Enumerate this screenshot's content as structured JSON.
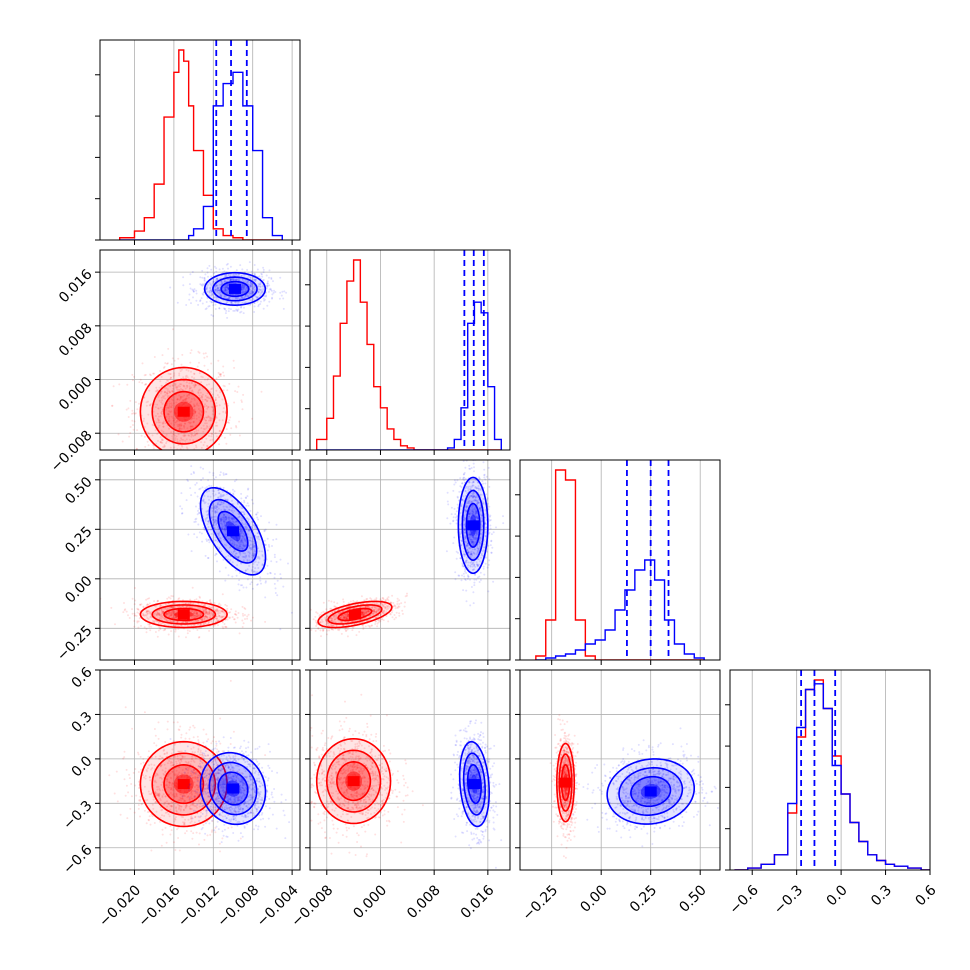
{
  "chart_data": {
    "type": "corner",
    "grid": true,
    "colors": {
      "red": "#ff0000",
      "blue": "#0000ff",
      "grid": "#b0b0b0",
      "frame": "#000000"
    },
    "parameters": [
      {
        "range": [
          -0.0235,
          -0.0032
        ],
        "ticks": [
          -0.02,
          -0.016,
          -0.012,
          -0.008,
          -0.004
        ],
        "tick_labels": [
          "−0.020",
          "−0.016",
          "−0.012",
          "−0.008",
          "−0.004"
        ]
      },
      {
        "range": [
          -0.0105,
          0.0193
        ],
        "ticks": [
          -0.008,
          0.0,
          0.008,
          0.016
        ],
        "tick_labels": [
          "−0.008",
          "0.000",
          "0.008",
          "0.016"
        ]
      },
      {
        "range": [
          -0.41,
          0.6
        ],
        "ticks": [
          -0.25,
          0.0,
          0.25,
          0.5
        ],
        "tick_labels": [
          "−0.25",
          "0.00",
          "0.25",
          "0.50"
        ]
      },
      {
        "range": [
          -0.75,
          0.6
        ],
        "ticks": [
          -0.6,
          -0.3,
          0.0,
          0.3,
          0.6
        ],
        "tick_labels": [
          "−0.6",
          "−0.3",
          "0.0",
          "0.3",
          "0.6"
        ]
      }
    ],
    "marginals": [
      {
        "edges": [
          -0.0215,
          -0.02,
          -0.019,
          -0.018,
          -0.017,
          -0.016,
          -0.0155,
          -0.015,
          -0.0145,
          -0.014,
          -0.013,
          -0.012,
          -0.011,
          -0.01,
          -0.009,
          -0.008,
          -0.007,
          -0.006,
          -0.005
        ],
        "red": [
          1,
          4,
          10,
          25,
          55,
          75,
          85,
          80,
          60,
          40,
          20,
          5,
          2,
          1,
          0,
          0,
          0,
          0
        ],
        "blue": [
          0,
          0,
          0,
          0,
          0,
          0,
          0,
          0,
          2,
          5,
          15,
          60,
          70,
          75,
          60,
          40,
          10,
          2
        ],
        "blue_quantiles": [
          -0.0117,
          -0.0102,
          -0.0086
        ]
      },
      {
        "edges": [
          -0.0095,
          -0.008,
          -0.007,
          -0.006,
          -0.005,
          -0.004,
          -0.003,
          -0.002,
          -0.001,
          0.0,
          0.001,
          0.002,
          0.003,
          0.004,
          0.005,
          0.006,
          0.007,
          0.008,
          0.009,
          0.01,
          0.011,
          0.012,
          0.013,
          0.014,
          0.015,
          0.016,
          0.017,
          0.018
        ],
        "red": [
          5,
          15,
          35,
          60,
          80,
          90,
          70,
          50,
          30,
          20,
          10,
          5,
          2,
          1,
          0,
          0,
          0,
          0,
          0,
          0,
          0,
          0,
          0,
          0,
          0,
          0,
          0
        ],
        "blue": [
          0,
          0,
          0,
          0,
          0,
          0,
          0,
          0,
          0,
          0,
          0,
          0,
          0,
          0,
          0,
          0,
          0,
          0,
          0,
          1,
          5,
          20,
          60,
          70,
          65,
          30,
          5
        ],
        "blue_quantiles": [
          0.0125,
          0.0139,
          0.0154
        ]
      },
      {
        "edges": [
          -0.33,
          -0.28,
          -0.23,
          -0.18,
          -0.13,
          -0.08,
          -0.03,
          0.02,
          0.07,
          0.12,
          0.17,
          0.22,
          0.27,
          0.32,
          0.37,
          0.42,
          0.47,
          0.52
        ],
        "red": [
          2,
          20,
          95,
          90,
          20,
          2,
          0,
          0,
          0,
          0,
          0,
          0,
          0,
          0,
          0,
          0,
          0
        ],
        "blue": [
          0,
          1,
          2,
          3,
          5,
          8,
          10,
          15,
          25,
          35,
          45,
          50,
          40,
          20,
          8,
          3,
          1
        ],
        "blue_quantiles": [
          0.13,
          0.25,
          0.34
        ]
      },
      {
        "edges": [
          -0.72,
          -0.63,
          -0.54,
          -0.45,
          -0.36,
          -0.3,
          -0.24,
          -0.18,
          -0.12,
          -0.06,
          0.0,
          0.06,
          0.12,
          0.18,
          0.24,
          0.3,
          0.36,
          0.45,
          0.54,
          0.6
        ],
        "red": [
          0,
          1,
          3,
          8,
          30,
          70,
          95,
          100,
          85,
          60,
          40,
          25,
          15,
          8,
          5,
          3,
          2,
          1,
          0
        ],
        "blue": [
          0,
          1,
          3,
          8,
          35,
          75,
          95,
          98,
          85,
          55,
          40,
          25,
          15,
          8,
          5,
          3,
          2,
          1,
          0
        ],
        "blue_quantiles": [
          -0.27,
          -0.18,
          -0.04
        ]
      }
    ],
    "pairs": [
      {
        "row": 1,
        "col": 0,
        "red": {
          "center": [
            -0.015,
            -0.0048
          ],
          "spread": [
            0.002,
            0.003
          ],
          "rho": 0.0
        },
        "blue": {
          "center": [
            -0.0098,
            0.0135
          ],
          "spread": [
            0.0014,
            0.0011
          ],
          "rho": 0.0
        }
      },
      {
        "row": 2,
        "col": 0,
        "red": {
          "center": [
            -0.015,
            -0.18
          ],
          "spread": [
            0.002,
            0.03
          ],
          "rho": 0.0
        },
        "blue": {
          "center": [
            -0.01,
            0.24
          ],
          "spread": [
            0.0015,
            0.1
          ],
          "rho": -0.6
        }
      },
      {
        "row": 2,
        "col": 1,
        "red": {
          "center": [
            -0.0038,
            -0.18
          ],
          "spread": [
            0.0025,
            0.03
          ],
          "rho": 0.55
        },
        "blue": {
          "center": [
            0.0138,
            0.27
          ],
          "spread": [
            0.001,
            0.11
          ],
          "rho": 0.0
        }
      },
      {
        "row": 3,
        "col": 0,
        "red": {
          "center": [
            -0.015,
            -0.17
          ],
          "spread": [
            0.002,
            0.13
          ],
          "rho": 0.0
        },
        "blue": {
          "center": [
            -0.01,
            -0.2
          ],
          "spread": [
            0.0015,
            0.11
          ],
          "rho": -0.1
        }
      },
      {
        "row": 3,
        "col": 1,
        "red": {
          "center": [
            -0.004,
            -0.15
          ],
          "spread": [
            0.0025,
            0.13
          ],
          "rho": 0.0
        },
        "blue": {
          "center": [
            0.014,
            -0.17
          ],
          "spread": [
            0.001,
            0.13
          ],
          "rho": -0.2
        }
      },
      {
        "row": 3,
        "col": 2,
        "red": {
          "center": [
            -0.18,
            -0.16
          ],
          "spread": [
            0.02,
            0.12
          ],
          "rho": 0.0
        },
        "blue": {
          "center": [
            0.25,
            -0.22
          ],
          "spread": [
            0.1,
            0.1
          ],
          "rho": 0.1
        }
      }
    ]
  }
}
